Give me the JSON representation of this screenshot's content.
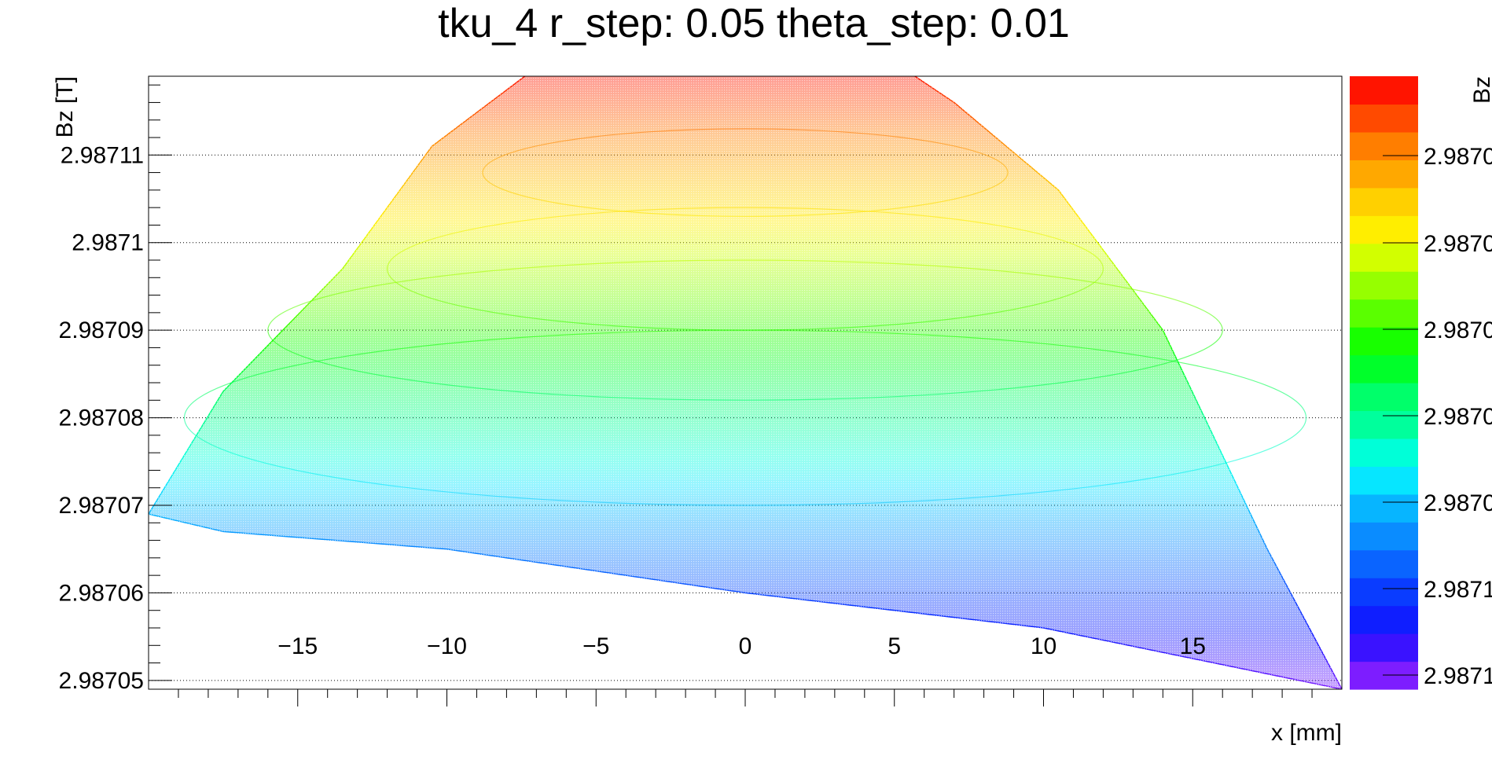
{
  "chart_data": {
    "type": "scatter",
    "title": "tku_4 r_step: 0.05 theta_step: 0.01",
    "xlabel": "x [mm]",
    "ylabel": "Bz [T]",
    "xlim": [
      -20,
      20
    ],
    "ylim": [
      2.987049,
      2.987119
    ],
    "grid": "horizontal dotted",
    "x_ticks": [
      -15,
      -10,
      -5,
      0,
      5,
      10,
      15
    ],
    "x_tick_labels": [
      "−15",
      "−10",
      "−5",
      "0",
      "5",
      "10",
      "15"
    ],
    "y_ticks": [
      2.98705,
      2.98706,
      2.98707,
      2.98708,
      2.98709,
      2.9871,
      2.98711
    ],
    "y_tick_labels": [
      "2.98705",
      "2.98706",
      "2.98707",
      "2.98708",
      "2.98709",
      "2.9871",
      "2.98711"
    ],
    "colorbar": {
      "label": "Bz",
      "tick_labels": [
        "2.9871",
        "2.9871",
        "2.9870",
        "2.9870",
        "2.9870",
        "2.9870",
        "2.9870"
      ],
      "colors": [
        "#7d1dff",
        "#3a12ff",
        "#0f1eff",
        "#0a3cff",
        "#0a64ff",
        "#0a8cff",
        "#07b5ff",
        "#06e6ff",
        "#00ffd8",
        "#00ff9c",
        "#00ff6a",
        "#00ff2a",
        "#18ff00",
        "#5aff00",
        "#96ff00",
        "#d2ff00",
        "#ffee00",
        "#ffd000",
        "#ffa800",
        "#ff7e00",
        "#ff4a00",
        "#ff1400"
      ]
    },
    "series": [
      {
        "description_type": "envelope",
        "upper": [
          {
            "x": -20,
            "y": 2.987069
          },
          {
            "x": -17.5,
            "y": 2.987083
          },
          {
            "x": -13.5,
            "y": 2.987097
          },
          {
            "x": -10.5,
            "y": 2.987111
          },
          {
            "x": -7,
            "y": 2.98712
          },
          {
            "x": -3,
            "y": 2.987129
          },
          {
            "x": 0,
            "y": 2.987128
          },
          {
            "x": 3.5,
            "y": 2.987124
          },
          {
            "x": 7,
            "y": 2.987116
          },
          {
            "x": 10.5,
            "y": 2.987106
          },
          {
            "x": 14,
            "y": 2.98709
          },
          {
            "x": 17.5,
            "y": 2.987065
          },
          {
            "x": 20,
            "y": 2.987049
          }
        ],
        "lower": [
          {
            "x": -20,
            "y": 2.987069
          },
          {
            "x": -17.5,
            "y": 2.987067
          },
          {
            "x": -10,
            "y": 2.987065
          },
          {
            "x": 0,
            "y": 2.98706
          },
          {
            "x": 10,
            "y": 2.987056
          },
          {
            "x": 20,
            "y": 2.987049
          }
        ]
      }
    ]
  }
}
